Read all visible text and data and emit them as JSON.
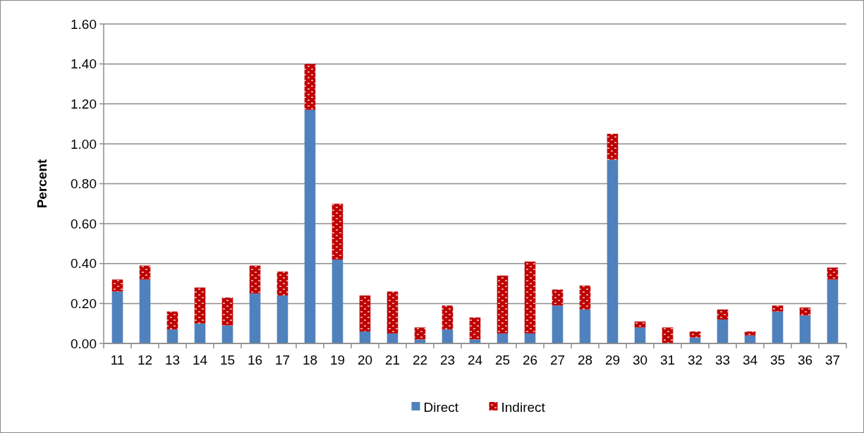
{
  "chart_data": {
    "type": "bar",
    "stacked": true,
    "ylabel": "Percent",
    "categories": [
      "11",
      "12",
      "13",
      "14",
      "15",
      "16",
      "17",
      "18",
      "19",
      "20",
      "21",
      "22",
      "23",
      "24",
      "25",
      "26",
      "27",
      "28",
      "29",
      "30",
      "31",
      "32",
      "33",
      "34",
      "35",
      "36",
      "37"
    ],
    "series": [
      {
        "name": "Direct",
        "color": "#4f81bd",
        "values": [
          0.26,
          0.32,
          0.07,
          0.1,
          0.09,
          0.25,
          0.24,
          1.17,
          0.42,
          0.06,
          0.05,
          0.02,
          0.07,
          0.02,
          0.05,
          0.05,
          0.19,
          0.17,
          0.92,
          0.08,
          0,
          0.03,
          0.12,
          0.04,
          0.16,
          0.14,
          0.32
        ]
      },
      {
        "name": "Indirect",
        "color": "#c00000",
        "values": [
          0.06,
          0.07,
          0.09,
          0.18,
          0.14,
          0.14,
          0.12,
          0.23,
          0.28,
          0.18,
          0.21,
          0.06,
          0.12,
          0.11,
          0.29,
          0.36,
          0.08,
          0.12,
          0.13,
          0.03,
          0.08,
          0.03,
          0.05,
          0.02,
          0.03,
          0.04,
          0.06
        ]
      }
    ],
    "ylim": [
      0,
      1.6
    ],
    "yticks": [
      {
        "value": 0,
        "label": "0.00"
      },
      {
        "value": 0.2,
        "label": "0.20"
      },
      {
        "value": 0.4,
        "label": "0.40"
      },
      {
        "value": 0.6,
        "label": "0.60"
      },
      {
        "value": 0.8,
        "label": "0.80"
      },
      {
        "value": 1,
        "label": "1.00"
      },
      {
        "value": 1.2,
        "label": "1.20"
      },
      {
        "value": 1.4,
        "label": "1.40"
      },
      {
        "value": 1.6,
        "label": "1.60"
      }
    ],
    "grid": "y",
    "legend": "bottom"
  }
}
